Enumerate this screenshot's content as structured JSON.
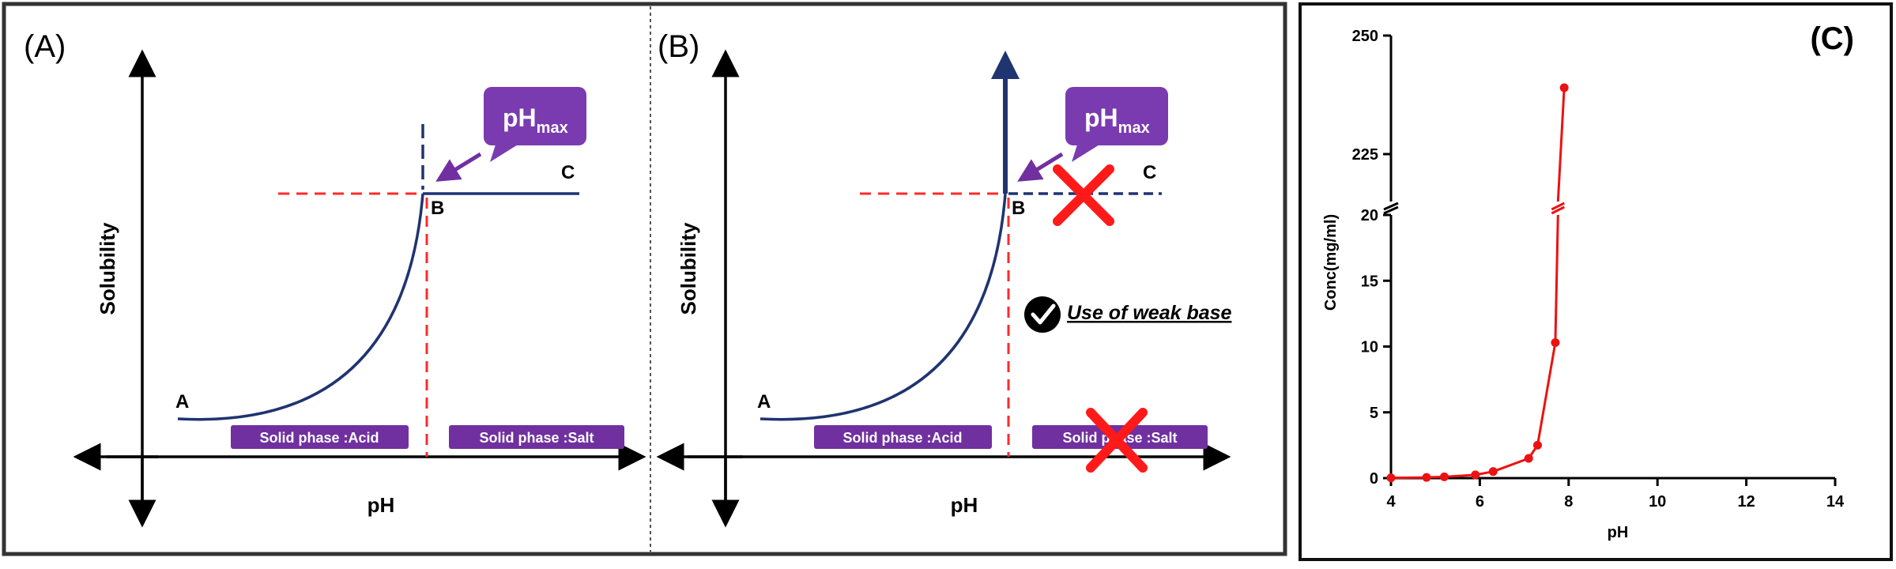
{
  "colors": {
    "curve": "#1f3470",
    "dashed_red": "#ff2a2a",
    "purple": "#7030a0",
    "purple_callout": "#7a3bb0",
    "red_cross": "#ff1a1a",
    "data_red": "#ee1111",
    "frame": "#333333"
  },
  "panel_a": {
    "label": "(A)",
    "ylabel": "Solubility",
    "xlabel": "pH",
    "point_a": "A",
    "point_b": "B",
    "point_c": "C",
    "callout_main": "pH",
    "callout_sub": "max",
    "region_left": "Solid phase :Acid",
    "region_right": "Solid phase :Salt"
  },
  "panel_b": {
    "label": "(B)",
    "ylabel": "Solubility",
    "xlabel": "pH",
    "point_a": "A",
    "point_b": "B",
    "point_c": "C",
    "callout_main": "pH",
    "callout_sub": "max",
    "annotation": "Use of weak base",
    "region_left": "Solid phase :Acid",
    "region_right": "Solid phase :Salt"
  },
  "chart_data": {
    "type": "line",
    "title": "(C)",
    "xlabel": "pH",
    "ylabel": "Conc(mg/ml)",
    "xlim": [
      4,
      14
    ],
    "x_ticks": [
      4,
      6,
      8,
      10,
      12,
      14
    ],
    "y_ticks_lower": [
      0,
      5,
      10,
      15,
      20
    ],
    "y_ticks_upper": [
      225,
      250
    ],
    "y_break": [
      20,
      215
    ],
    "y_upper_range": [
      215,
      250
    ],
    "grid": false,
    "legend": "none",
    "series": [
      {
        "x": [
          4.0,
          4.8,
          5.2,
          5.9,
          6.3,
          7.1,
          7.3,
          7.7,
          7.9
        ],
        "y": [
          0.02,
          0.05,
          0.1,
          0.25,
          0.5,
          1.5,
          2.5,
          10.3,
          239.0
        ]
      }
    ]
  }
}
